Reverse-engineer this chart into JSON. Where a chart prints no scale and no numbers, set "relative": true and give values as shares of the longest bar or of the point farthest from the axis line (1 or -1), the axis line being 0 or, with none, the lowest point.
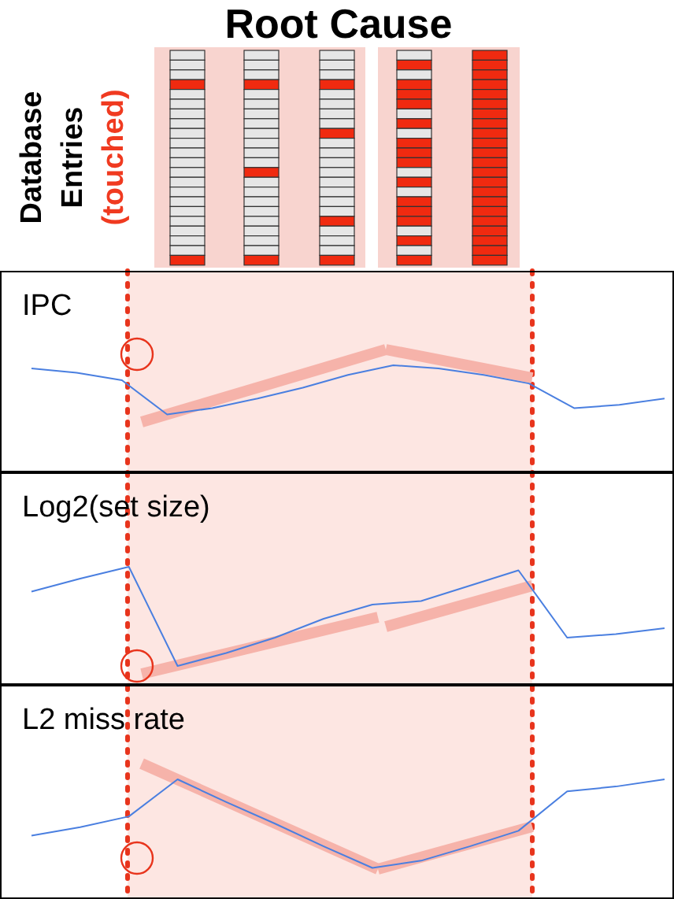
{
  "chart_data": [
    {
      "type": "other",
      "title": "Root Cause",
      "annotations": [
        "Database",
        "Entries",
        "(touched)"
      ]
    },
    {
      "type": "line",
      "title": "IPC",
      "relative": true,
      "categories": [
        null,
        null,
        null,
        null,
        null,
        null,
        null,
        null,
        null,
        null,
        null,
        null,
        null,
        null,
        null
      ],
      "series": [
        {
          "color": "#4a7fe0",
          "values": [
            0.97,
            0.93,
            0.86,
            0.54,
            0.6,
            0.69,
            0.79,
            0.91,
            1,
            0.97,
            0.91,
            0.83,
            0.6,
            0.63,
            0.69
          ]
        }
      ]
    },
    {
      "type": "line",
      "title": "Log2(set size)",
      "relative": true,
      "categories": [
        null,
        null,
        null,
        null,
        null,
        null,
        null,
        null,
        null,
        null,
        null,
        null,
        null,
        null
      ],
      "series": [
        {
          "color": "#4a7fe0",
          "values": [
            0.79,
            0.9,
            1,
            0.16,
            0.27,
            0.4,
            0.56,
            0.68,
            0.71,
            0.84,
            0.97,
            0.4,
            0.43,
            0.48
          ]
        }
      ]
    },
    {
      "type": "line",
      "title": "L2 miss rate",
      "relative": true,
      "categories": [
        null,
        null,
        null,
        null,
        null,
        null,
        null,
        null,
        null,
        null,
        null,
        null,
        null,
        null
      ],
      "series": [
        {
          "color": "#4a7fe0",
          "values": [
            0.53,
            0.6,
            0.69,
            1,
            0.81,
            0.63,
            0.44,
            0.26,
            0.32,
            0.44,
            0.57,
            0.9,
            0.94,
            1
          ]
        }
      ]
    }
  ]
}
